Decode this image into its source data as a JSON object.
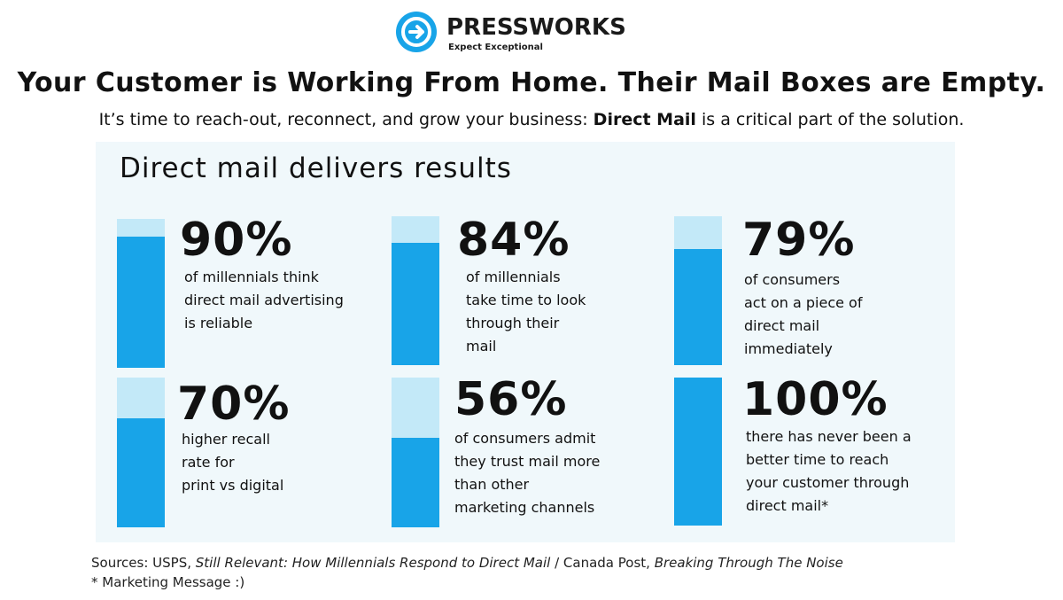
{
  "brand": {
    "name": "PRESSWORKS",
    "tagline": "Expect Exceptional",
    "colors": {
      "accent": "#18a4e8",
      "accent_light": "#c3e9f8",
      "panel": "#f0f8fb",
      "text": "#111111"
    },
    "icon": "pressworks-logo-icon"
  },
  "headline": "Your Customer is Working From Home. Their Mail Boxes are Empty.",
  "subline": {
    "before": "It’s time to reach-out, reconnect, and grow your business: ",
    "bold": "Direct Mail",
    "after": " is a critical part of the solution."
  },
  "panel": {
    "title": "Direct mail delivers results",
    "stats": [
      {
        "value": "90%",
        "fill": 0.88,
        "lines": [
          "of millennials think",
          "direct mail advertising",
          "is reliable"
        ]
      },
      {
        "value": "84%",
        "fill": 0.82,
        "lines": [
          "of millennials",
          "take time to look",
          "through their",
          "mail"
        ]
      },
      {
        "value": "79%",
        "fill": 0.78,
        "lines": [
          "of consumers",
          "act on a piece of",
          "direct mail",
          "immediately"
        ]
      },
      {
        "value": "70%",
        "fill": 0.73,
        "lines": [
          "higher recall",
          "rate for",
          "print vs digital"
        ]
      },
      {
        "value": "56%",
        "fill": 0.6,
        "lines": [
          "of consumers admit",
          "they trust mail more",
          "than other",
          "marketing channels"
        ]
      },
      {
        "value": "100%",
        "fill": 1.0,
        "lines": [
          "there has never been a",
          "better time to reach",
          "your customer through",
          "direct mail*"
        ]
      }
    ]
  },
  "sources": {
    "label": "Sources: USPS, ",
    "usps_title": "Still Relevant: How Millennials Respond to Direct Mail",
    "separator": "  /  Canada Post, ",
    "canada_title": "Breaking Through The Noise",
    "footnote": "* Marketing Message :)"
  }
}
